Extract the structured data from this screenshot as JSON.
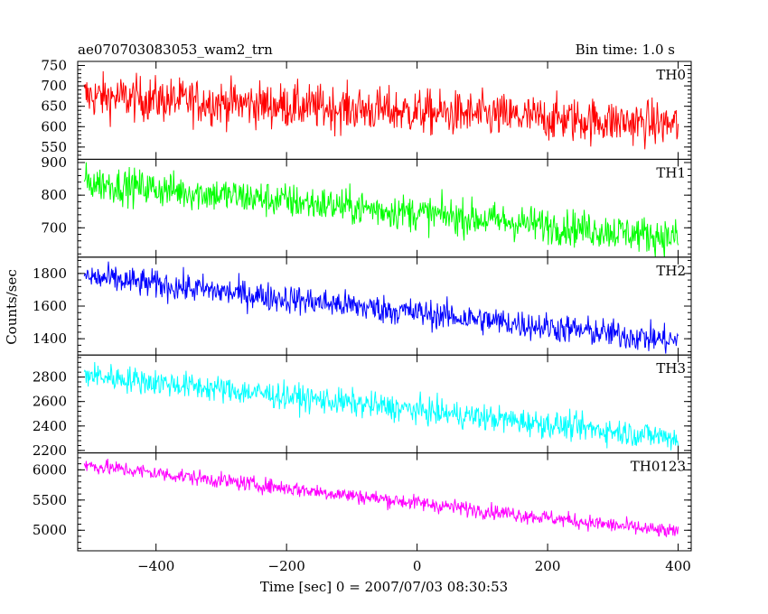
{
  "header": {
    "title": "ae070703083053_wam2_trn",
    "bin_time": "Bin time: 1.0 s"
  },
  "chart_data": {
    "type": "line",
    "x": {
      "start": -510,
      "end": 400,
      "step": 1
    },
    "xlim": [
      -520,
      420
    ],
    "xticks": [
      -400,
      -200,
      0,
      200,
      400
    ],
    "xtick_labels": [
      "−400",
      "−200",
      "0",
      "200",
      "400"
    ],
    "xlabel": "Time [sec] 0 = 2007/07/03 08:30:53",
    "ylabel": "Counts/sec",
    "panels": [
      {
        "name": "TH0",
        "color": "#ff0000",
        "ylim": [
          520,
          760
        ],
        "yticks": [
          550,
          600,
          650,
          700,
          750
        ],
        "trend_start": 675,
        "trend_end": 605,
        "noise": 28
      },
      {
        "name": "TH1",
        "color": "#00ff00",
        "ylim": [
          610,
          910
        ],
        "yticks": [
          700,
          800,
          900
        ],
        "trend_start": 840,
        "trend_end": 670,
        "noise": 28
      },
      {
        "name": "TH2",
        "color": "#0000ff",
        "ylim": [
          1300,
          1900
        ],
        "yticks": [
          1400,
          1600,
          1800
        ],
        "trend_start": 1780,
        "trend_end": 1385,
        "noise": 45
      },
      {
        "name": "TH3",
        "color": "#00ffff",
        "ylim": [
          2180,
          2980
        ],
        "yticks": [
          2200,
          2400,
          2600,
          2800
        ],
        "trend_start": 2820,
        "trend_end": 2300,
        "noise": 55
      },
      {
        "name": "TH0123",
        "color": "#ff00ff",
        "ylim": [
          4660,
          6280
        ],
        "yticks": [
          5000,
          5500,
          6000
        ],
        "trend_start": 6080,
        "trend_end": 4960,
        "noise": 65
      }
    ]
  }
}
